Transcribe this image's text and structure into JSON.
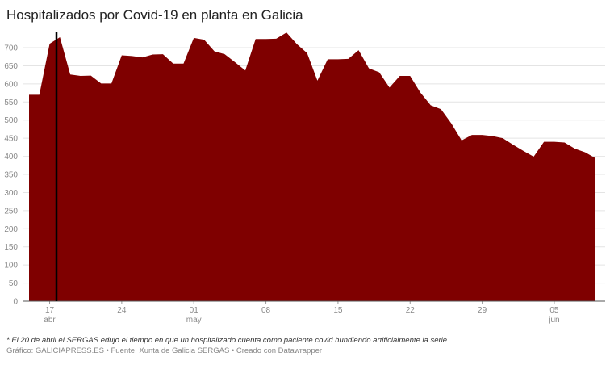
{
  "chart_data": {
    "type": "area",
    "title": "Hospitalizados por Covid-19 en planta en Galicia",
    "categories": [
      null,
      null,
      "17",
      null,
      null,
      null,
      null,
      null,
      null,
      "24",
      null,
      null,
      null,
      null,
      null,
      null,
      "01",
      null,
      null,
      null,
      null,
      null,
      null,
      "08",
      null,
      null,
      null,
      null,
      null,
      null,
      "15",
      null,
      null,
      null,
      null,
      null,
      null,
      "22",
      null,
      null,
      null,
      null,
      null,
      null,
      "29",
      null,
      null,
      null,
      null,
      null,
      null,
      "05",
      null,
      null,
      null,
      null
    ],
    "category_months": [
      null,
      null,
      "abr",
      null,
      null,
      null,
      null,
      null,
      null,
      null,
      null,
      null,
      null,
      null,
      null,
      null,
      "may",
      null,
      null,
      null,
      null,
      null,
      null,
      null,
      null,
      null,
      null,
      null,
      null,
      null,
      null,
      null,
      null,
      null,
      null,
      null,
      null,
      null,
      null,
      null,
      null,
      null,
      null,
      null,
      null,
      null,
      null,
      null,
      null,
      null,
      null,
      "jun",
      null,
      null,
      null,
      null
    ],
    "values": [
      570,
      570,
      711,
      729,
      626,
      622,
      623,
      601,
      601,
      679,
      677,
      673,
      681,
      682,
      656,
      656,
      727,
      722,
      690,
      682,
      660,
      637,
      724,
      724,
      725,
      742,
      710,
      685,
      609,
      668,
      668,
      669,
      693,
      643,
      632,
      590,
      622,
      622,
      576,
      541,
      530,
      491,
      444,
      459,
      459,
      456,
      450,
      432,
      415,
      399,
      440,
      440,
      438,
      421,
      411,
      395
    ],
    "color": "#7f0000",
    "ylim": [
      0,
      750
    ],
    "yticks": [
      0,
      50,
      100,
      150,
      200,
      250,
      300,
      350,
      400,
      450,
      500,
      550,
      600,
      650,
      700
    ],
    "grid": true,
    "footnote": "* El 20 de abril el SERGAS edujo el tiempo en que un hospitalizado cuenta como paciente covid hundiendo artificialmente la serie",
    "credits": "Gráfico: GALICIAPRESS.ES • Fuente: Xunta de Galicia SERGAS • Creado con Datawrapper"
  }
}
